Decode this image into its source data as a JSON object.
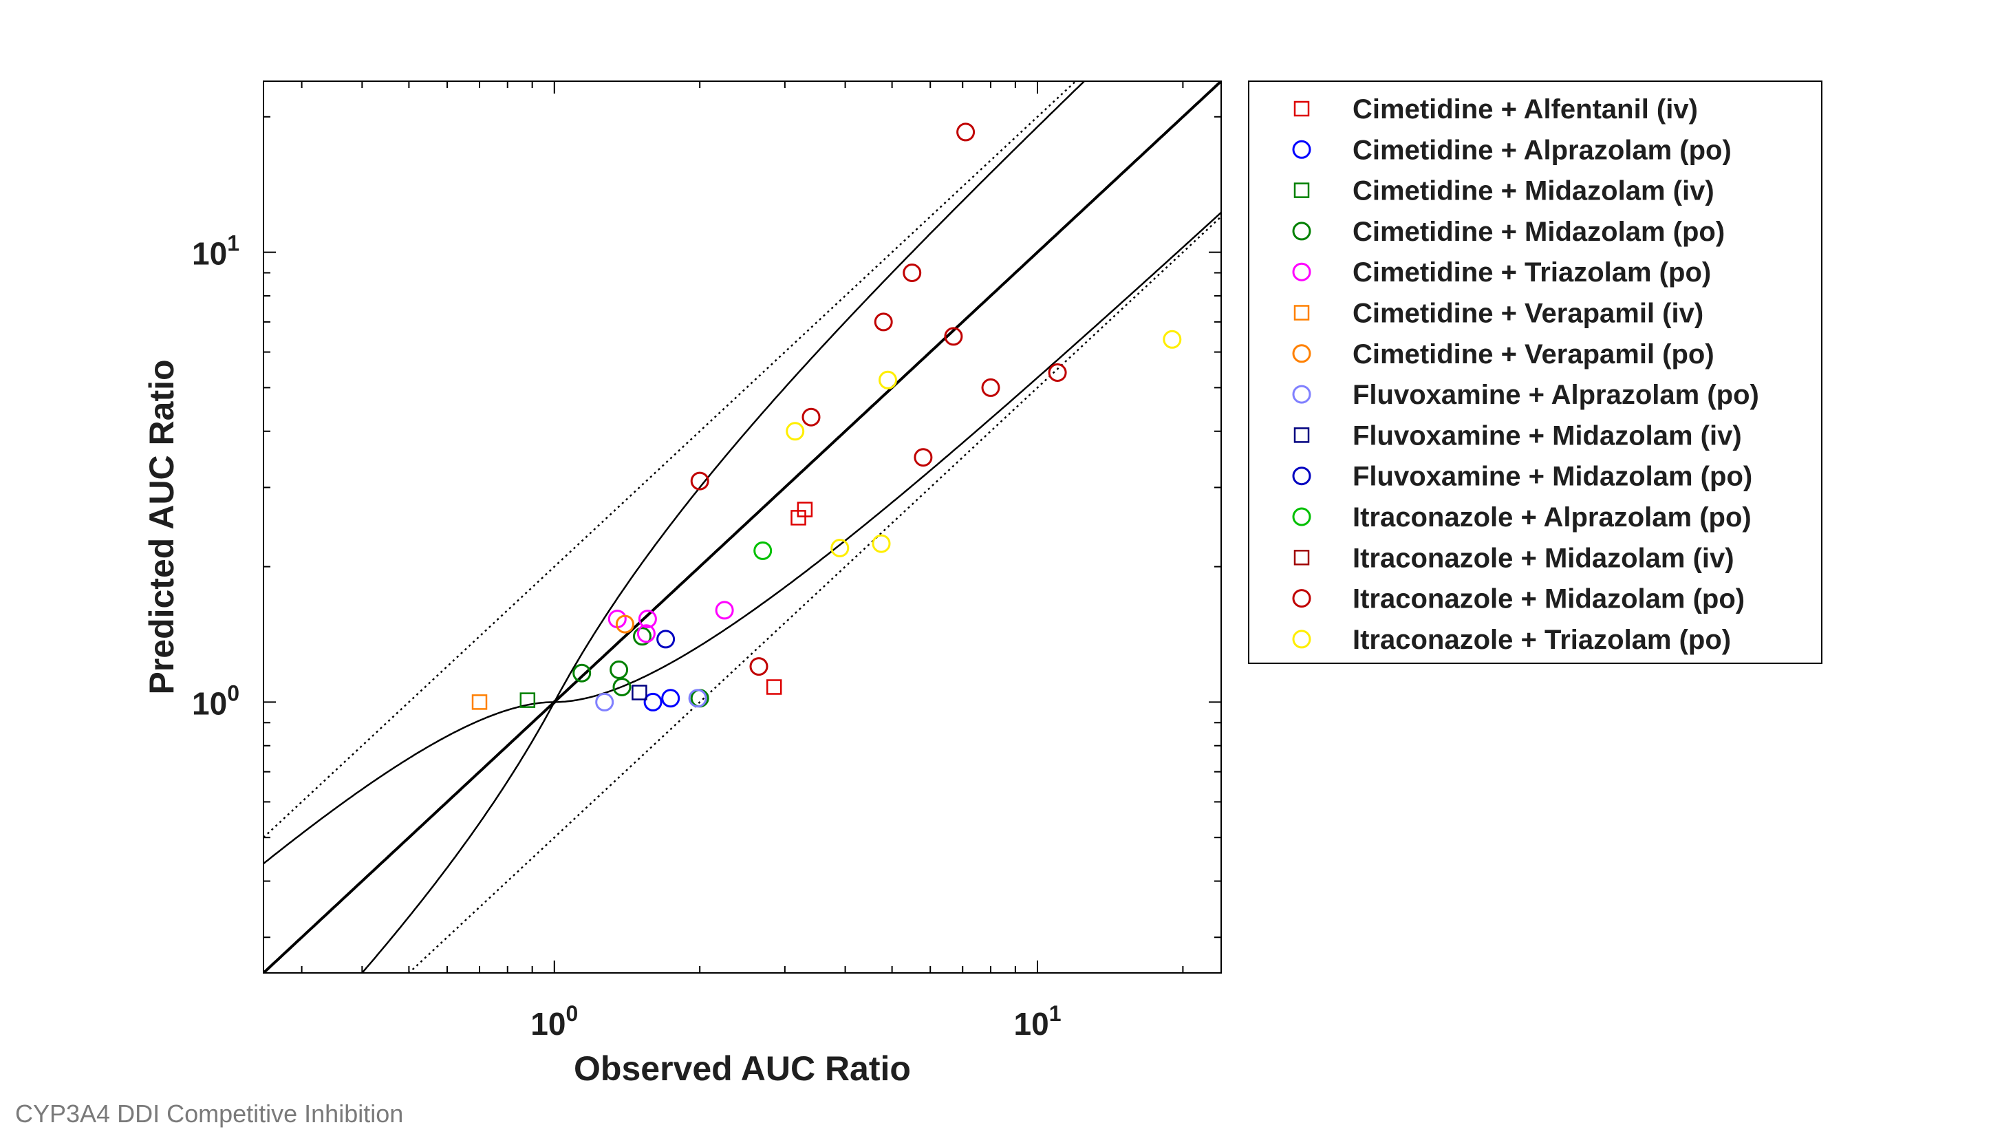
{
  "footer_caption": "CYP3A4 DDI Competitive Inhibition",
  "chart_data": {
    "type": "scatter",
    "xlabel": "Observed AUC Ratio",
    "ylabel": "Predicted AUC Ratio",
    "xscale": "log",
    "yscale": "log",
    "xlim": [
      0.25,
      24
    ],
    "ylim": [
      0.25,
      24
    ],
    "x_ticks": [
      {
        "base": "10",
        "exp": "0",
        "value": 1
      },
      {
        "base": "10",
        "exp": "1",
        "value": 10
      }
    ],
    "y_ticks": [
      {
        "base": "10",
        "exp": "0",
        "value": 1
      },
      {
        "base": "10",
        "exp": "1",
        "value": 10
      }
    ],
    "grid": false,
    "legend_position": "outside-right-top",
    "reference_lines": [
      {
        "kind": "identity",
        "style": "solid-thick"
      },
      {
        "kind": "fold",
        "fold": 2,
        "style": "dotted"
      },
      {
        "kind": "guest-limits",
        "delta": 1,
        "style": "solid"
      }
    ],
    "series": [
      {
        "name": "Cimetidine + Alfentanil (iv)",
        "marker": "square",
        "color": "#dd0000",
        "points": [
          [
            2.85,
            1.08
          ],
          [
            3.2,
            2.57
          ],
          [
            3.3,
            2.68
          ]
        ]
      },
      {
        "name": "Cimetidine + Alprazolam (po)",
        "marker": "circle",
        "color": "#0000ff",
        "points": [
          [
            1.6,
            1.0
          ],
          [
            1.74,
            1.02
          ]
        ]
      },
      {
        "name": "Cimetidine + Midazolam (iv)",
        "marker": "square",
        "color": "#008000",
        "points": [
          [
            0.88,
            1.01
          ]
        ]
      },
      {
        "name": "Cimetidine + Midazolam (po)",
        "marker": "circle",
        "color": "#008000",
        "points": [
          [
            1.14,
            1.16
          ],
          [
            1.36,
            1.18
          ],
          [
            1.38,
            1.08
          ],
          [
            1.52,
            1.4
          ],
          [
            2.0,
            1.02
          ]
        ]
      },
      {
        "name": "Cimetidine + Triazolam (po)",
        "marker": "circle",
        "color": "#ff00ff",
        "points": [
          [
            1.35,
            1.53
          ],
          [
            1.55,
            1.42
          ],
          [
            1.56,
            1.53
          ],
          [
            2.25,
            1.6
          ]
        ]
      },
      {
        "name": "Cimetidine + Verapamil (iv)",
        "marker": "square",
        "color": "#ff8000",
        "points": [
          [
            0.7,
            1.0
          ]
        ]
      },
      {
        "name": "Cimetidine + Verapamil (po)",
        "marker": "circle",
        "color": "#ff8000",
        "points": [
          [
            1.4,
            1.49
          ]
        ]
      },
      {
        "name": "Fluvoxamine + Alprazolam (po)",
        "marker": "circle",
        "color": "#8080ff",
        "points": [
          [
            1.27,
            1.0
          ],
          [
            1.98,
            1.02
          ]
        ]
      },
      {
        "name": "Fluvoxamine + Midazolam (iv)",
        "marker": "square",
        "color": "#000080",
        "points": [
          [
            1.5,
            1.05
          ]
        ]
      },
      {
        "name": "Fluvoxamine + Midazolam (po)",
        "marker": "circle",
        "color": "#0000c0",
        "points": [
          [
            1.7,
            1.38
          ]
        ]
      },
      {
        "name": "Itraconazole + Alprazolam (po)",
        "marker": "circle",
        "color": "#00c000",
        "points": [
          [
            2.7,
            2.17
          ]
        ]
      },
      {
        "name": "Itraconazole + Midazolam (iv)",
        "marker": "square",
        "color": "#a00000",
        "points": []
      },
      {
        "name": "Itraconazole + Midazolam (po)",
        "marker": "circle",
        "color": "#c00000",
        "points": [
          [
            2.65,
            1.2
          ],
          [
            2.0,
            3.1
          ],
          [
            3.4,
            4.3
          ],
          [
            4.8,
            7.0
          ],
          [
            5.5,
            9.0
          ],
          [
            5.8,
            3.5
          ],
          [
            6.7,
            6.5
          ],
          [
            7.1,
            18.5
          ],
          [
            8.0,
            5.0
          ],
          [
            11.0,
            5.4
          ]
        ]
      },
      {
        "name": "Itraconazole + Triazolam (po)",
        "marker": "circle",
        "color": "#ffee00",
        "points": [
          [
            3.15,
            4.0
          ],
          [
            3.9,
            2.2
          ],
          [
            4.75,
            2.25
          ],
          [
            4.9,
            5.2
          ],
          [
            19.0,
            6.4
          ]
        ]
      }
    ]
  }
}
